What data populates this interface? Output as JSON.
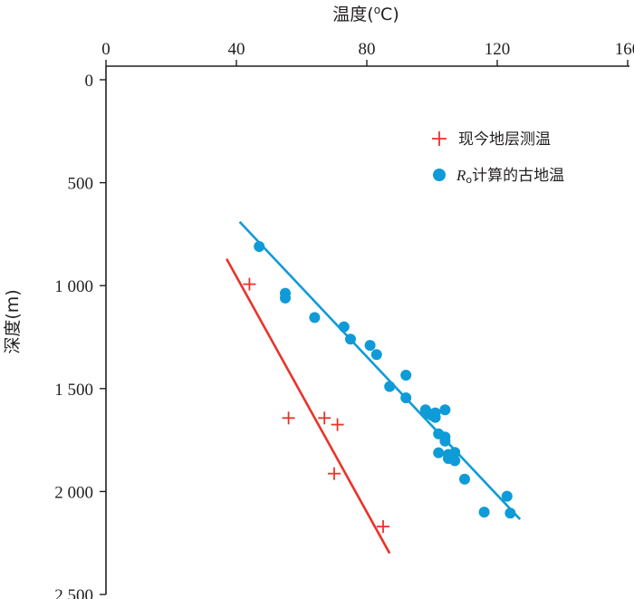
{
  "chart_data": {
    "type": "scatter",
    "x_axis": {
      "label_cn": "温度",
      "label_unit_open": "(",
      "label_degree": "o",
      "label_unit_close": "C)",
      "position": "top",
      "range": [
        0,
        160
      ],
      "ticks": [
        0,
        40,
        80,
        120,
        160
      ],
      "tick_labels": [
        "0",
        "40",
        "80",
        "120",
        "160"
      ]
    },
    "y_axis": {
      "label": "深度(m)",
      "inverted": true,
      "range": [
        0,
        2500
      ],
      "ticks": [
        0,
        500,
        1000,
        1500,
        2000,
        2500
      ],
      "tick_labels": [
        "0",
        "500",
        "1 000",
        "1 500",
        "2 000",
        "2 500"
      ]
    },
    "grid": false,
    "legend_placement": "top-right",
    "series": [
      {
        "name": "现今地层测温",
        "marker": "plus",
        "color": "#e8342a",
        "points": [
          [
            44,
            993
          ],
          [
            56,
            1643
          ],
          [
            67,
            1643
          ],
          [
            71,
            1675
          ],
          [
            70,
            1913
          ],
          [
            85,
            2170
          ]
        ],
        "trend_line": [
          [
            37,
            870
          ],
          [
            87,
            2300
          ]
        ]
      },
      {
        "name_prefix": "R",
        "name_subscript": "o",
        "name_suffix": "计算的古地温",
        "marker": "circle",
        "color": "#0f9bd7",
        "points": [
          [
            47,
            810
          ],
          [
            55,
            1037
          ],
          [
            55,
            1060
          ],
          [
            64,
            1155
          ],
          [
            73,
            1200
          ],
          [
            75,
            1260
          ],
          [
            81,
            1290
          ],
          [
            83,
            1335
          ],
          [
            92,
            1435
          ],
          [
            87,
            1490
          ],
          [
            92,
            1545
          ],
          [
            98,
            1603
          ],
          [
            99,
            1622
          ],
          [
            100,
            1630
          ],
          [
            101,
            1618
          ],
          [
            101,
            1640
          ],
          [
            104,
            1603
          ],
          [
            102,
            1720
          ],
          [
            104,
            1735
          ],
          [
            104,
            1755
          ],
          [
            102,
            1812
          ],
          [
            105,
            1820
          ],
          [
            107,
            1810
          ],
          [
            105,
            1840
          ],
          [
            107,
            1850
          ],
          [
            110,
            1940
          ],
          [
            123,
            2023
          ],
          [
            116,
            2100
          ],
          [
            124,
            2105
          ]
        ],
        "trend_line": [
          [
            41,
            690
          ],
          [
            127,
            2135
          ]
        ]
      }
    ]
  }
}
